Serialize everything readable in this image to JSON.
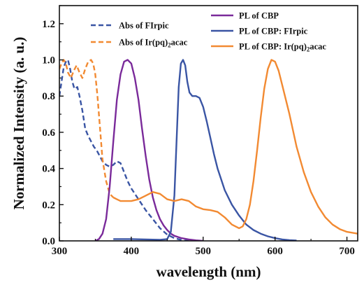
{
  "chart_data": {
    "type": "line",
    "title": "",
    "xlabel": "wavelength (nm)",
    "ylabel": "Normalized Intensity (a. u.)",
    "xlim": [
      300,
      715
    ],
    "ylim": [
      0,
      1.3
    ],
    "x_ticks": [
      300,
      400,
      500,
      600,
      700
    ],
    "y_ticks": [
      0.0,
      0.2,
      0.4,
      0.6,
      0.8,
      1.0,
      1.2
    ],
    "x_tick_labels": [
      "300",
      "400",
      "500",
      "600",
      "700"
    ],
    "y_tick_labels": [
      "0.0",
      "0.2",
      "0.4",
      "0.6",
      "0.8",
      "1.0",
      "1.2"
    ],
    "grid": false,
    "legend_left": [
      {
        "prefix": "Abs of FIrpic",
        "sub": "",
        "suffix": "",
        "series_index": 0
      },
      {
        "prefix": "Abs of Ir(pq)",
        "sub": "2",
        "suffix": "acac",
        "series_index": 1
      }
    ],
    "legend_right": [
      {
        "prefix": "PL of CBP",
        "sub": "",
        "suffix": "",
        "series_index": 2
      },
      {
        "prefix": "PL of CBP: FIrpic",
        "sub": "",
        "suffix": "",
        "series_index": 3
      },
      {
        "prefix": "PL of CBP: Ir(pq)",
        "sub": "2",
        "suffix": "acac",
        "series_index": 4
      }
    ],
    "series": [
      {
        "name": "Abs of FIrpic",
        "color": "#3a55a4",
        "style": "dashed",
        "x": [
          300,
          303,
          306,
          309,
          312,
          315,
          318,
          321,
          325,
          328,
          332,
          336,
          340,
          344,
          348,
          352,
          356,
          360,
          365,
          370,
          375,
          380,
          385,
          390,
          395,
          400,
          410,
          420,
          430,
          440,
          450,
          460,
          470,
          475,
          480
        ],
        "y": [
          0.8,
          0.88,
          0.96,
          0.99,
          1.0,
          0.95,
          0.88,
          0.84,
          0.85,
          0.8,
          0.72,
          0.62,
          0.58,
          0.55,
          0.52,
          0.5,
          0.47,
          0.44,
          0.42,
          0.41,
          0.42,
          0.44,
          0.43,
          0.38,
          0.33,
          0.29,
          0.23,
          0.17,
          0.12,
          0.07,
          0.035,
          0.015,
          0.005,
          0.002,
          0.0
        ]
      },
      {
        "name": "Abs of Ir(pq)2acac",
        "color": "#f28a32",
        "style": "dashed",
        "x": [
          300,
          303,
          306,
          309,
          312,
          316,
          320,
          324,
          328,
          332,
          336,
          340,
          344,
          347,
          350,
          353,
          356,
          360,
          365,
          370,
          375
        ],
        "y": [
          0.95,
          0.98,
          1.0,
          0.98,
          0.93,
          0.9,
          0.94,
          0.97,
          0.93,
          0.9,
          0.95,
          0.99,
          1.0,
          0.98,
          0.92,
          0.8,
          0.65,
          0.45,
          0.33,
          0.26,
          0.24
        ]
      },
      {
        "name": "PL of CBP",
        "color": "#7a2a9a",
        "style": "solid",
        "x": [
          350,
          355,
          360,
          365,
          370,
          375,
          380,
          385,
          390,
          395,
          400,
          405,
          410,
          415,
          420,
          425,
          430,
          435,
          440,
          445,
          450,
          455,
          460,
          470,
          480,
          490,
          500
        ],
        "y": [
          0.0,
          0.01,
          0.04,
          0.12,
          0.3,
          0.55,
          0.78,
          0.92,
          0.99,
          1.0,
          0.98,
          0.9,
          0.78,
          0.62,
          0.47,
          0.34,
          0.24,
          0.17,
          0.12,
          0.085,
          0.06,
          0.04,
          0.028,
          0.015,
          0.008,
          0.003,
          0.0
        ]
      },
      {
        "name": "PL of CBP: FIrpic",
        "color": "#3a55a4",
        "style": "solid",
        "x": [
          375,
          400,
          420,
          440,
          450,
          455,
          460,
          463,
          466,
          469,
          472,
          475,
          478,
          481,
          485,
          490,
          495,
          500,
          505,
          510,
          515,
          520,
          530,
          540,
          550,
          560,
          570,
          580,
          590,
          600,
          610,
          620,
          630
        ],
        "y": [
          0.01,
          0.01,
          0.008,
          0.006,
          0.01,
          0.05,
          0.25,
          0.55,
          0.85,
          0.98,
          1.0,
          0.97,
          0.88,
          0.82,
          0.8,
          0.8,
          0.79,
          0.74,
          0.66,
          0.57,
          0.48,
          0.4,
          0.28,
          0.2,
          0.14,
          0.09,
          0.06,
          0.04,
          0.025,
          0.015,
          0.008,
          0.004,
          0.002
        ]
      },
      {
        "name": "PL of CBP: Ir(pq)2acac",
        "color": "#f28a32",
        "style": "solid",
        "x": [
          375,
          380,
          385,
          390,
          395,
          400,
          410,
          420,
          430,
          440,
          450,
          460,
          470,
          480,
          490,
          500,
          510,
          520,
          530,
          540,
          550,
          555,
          560,
          565,
          570,
          575,
          580,
          585,
          590,
          595,
          600,
          605,
          610,
          620,
          630,
          640,
          650,
          660,
          670,
          680,
          690,
          700,
          715
        ],
        "y": [
          0.24,
          0.23,
          0.22,
          0.22,
          0.22,
          0.22,
          0.23,
          0.25,
          0.27,
          0.26,
          0.23,
          0.22,
          0.23,
          0.22,
          0.19,
          0.175,
          0.17,
          0.16,
          0.13,
          0.09,
          0.07,
          0.08,
          0.12,
          0.2,
          0.33,
          0.5,
          0.68,
          0.84,
          0.95,
          1.0,
          0.99,
          0.94,
          0.86,
          0.7,
          0.52,
          0.38,
          0.27,
          0.19,
          0.13,
          0.09,
          0.065,
          0.05,
          0.04
        ]
      }
    ]
  }
}
